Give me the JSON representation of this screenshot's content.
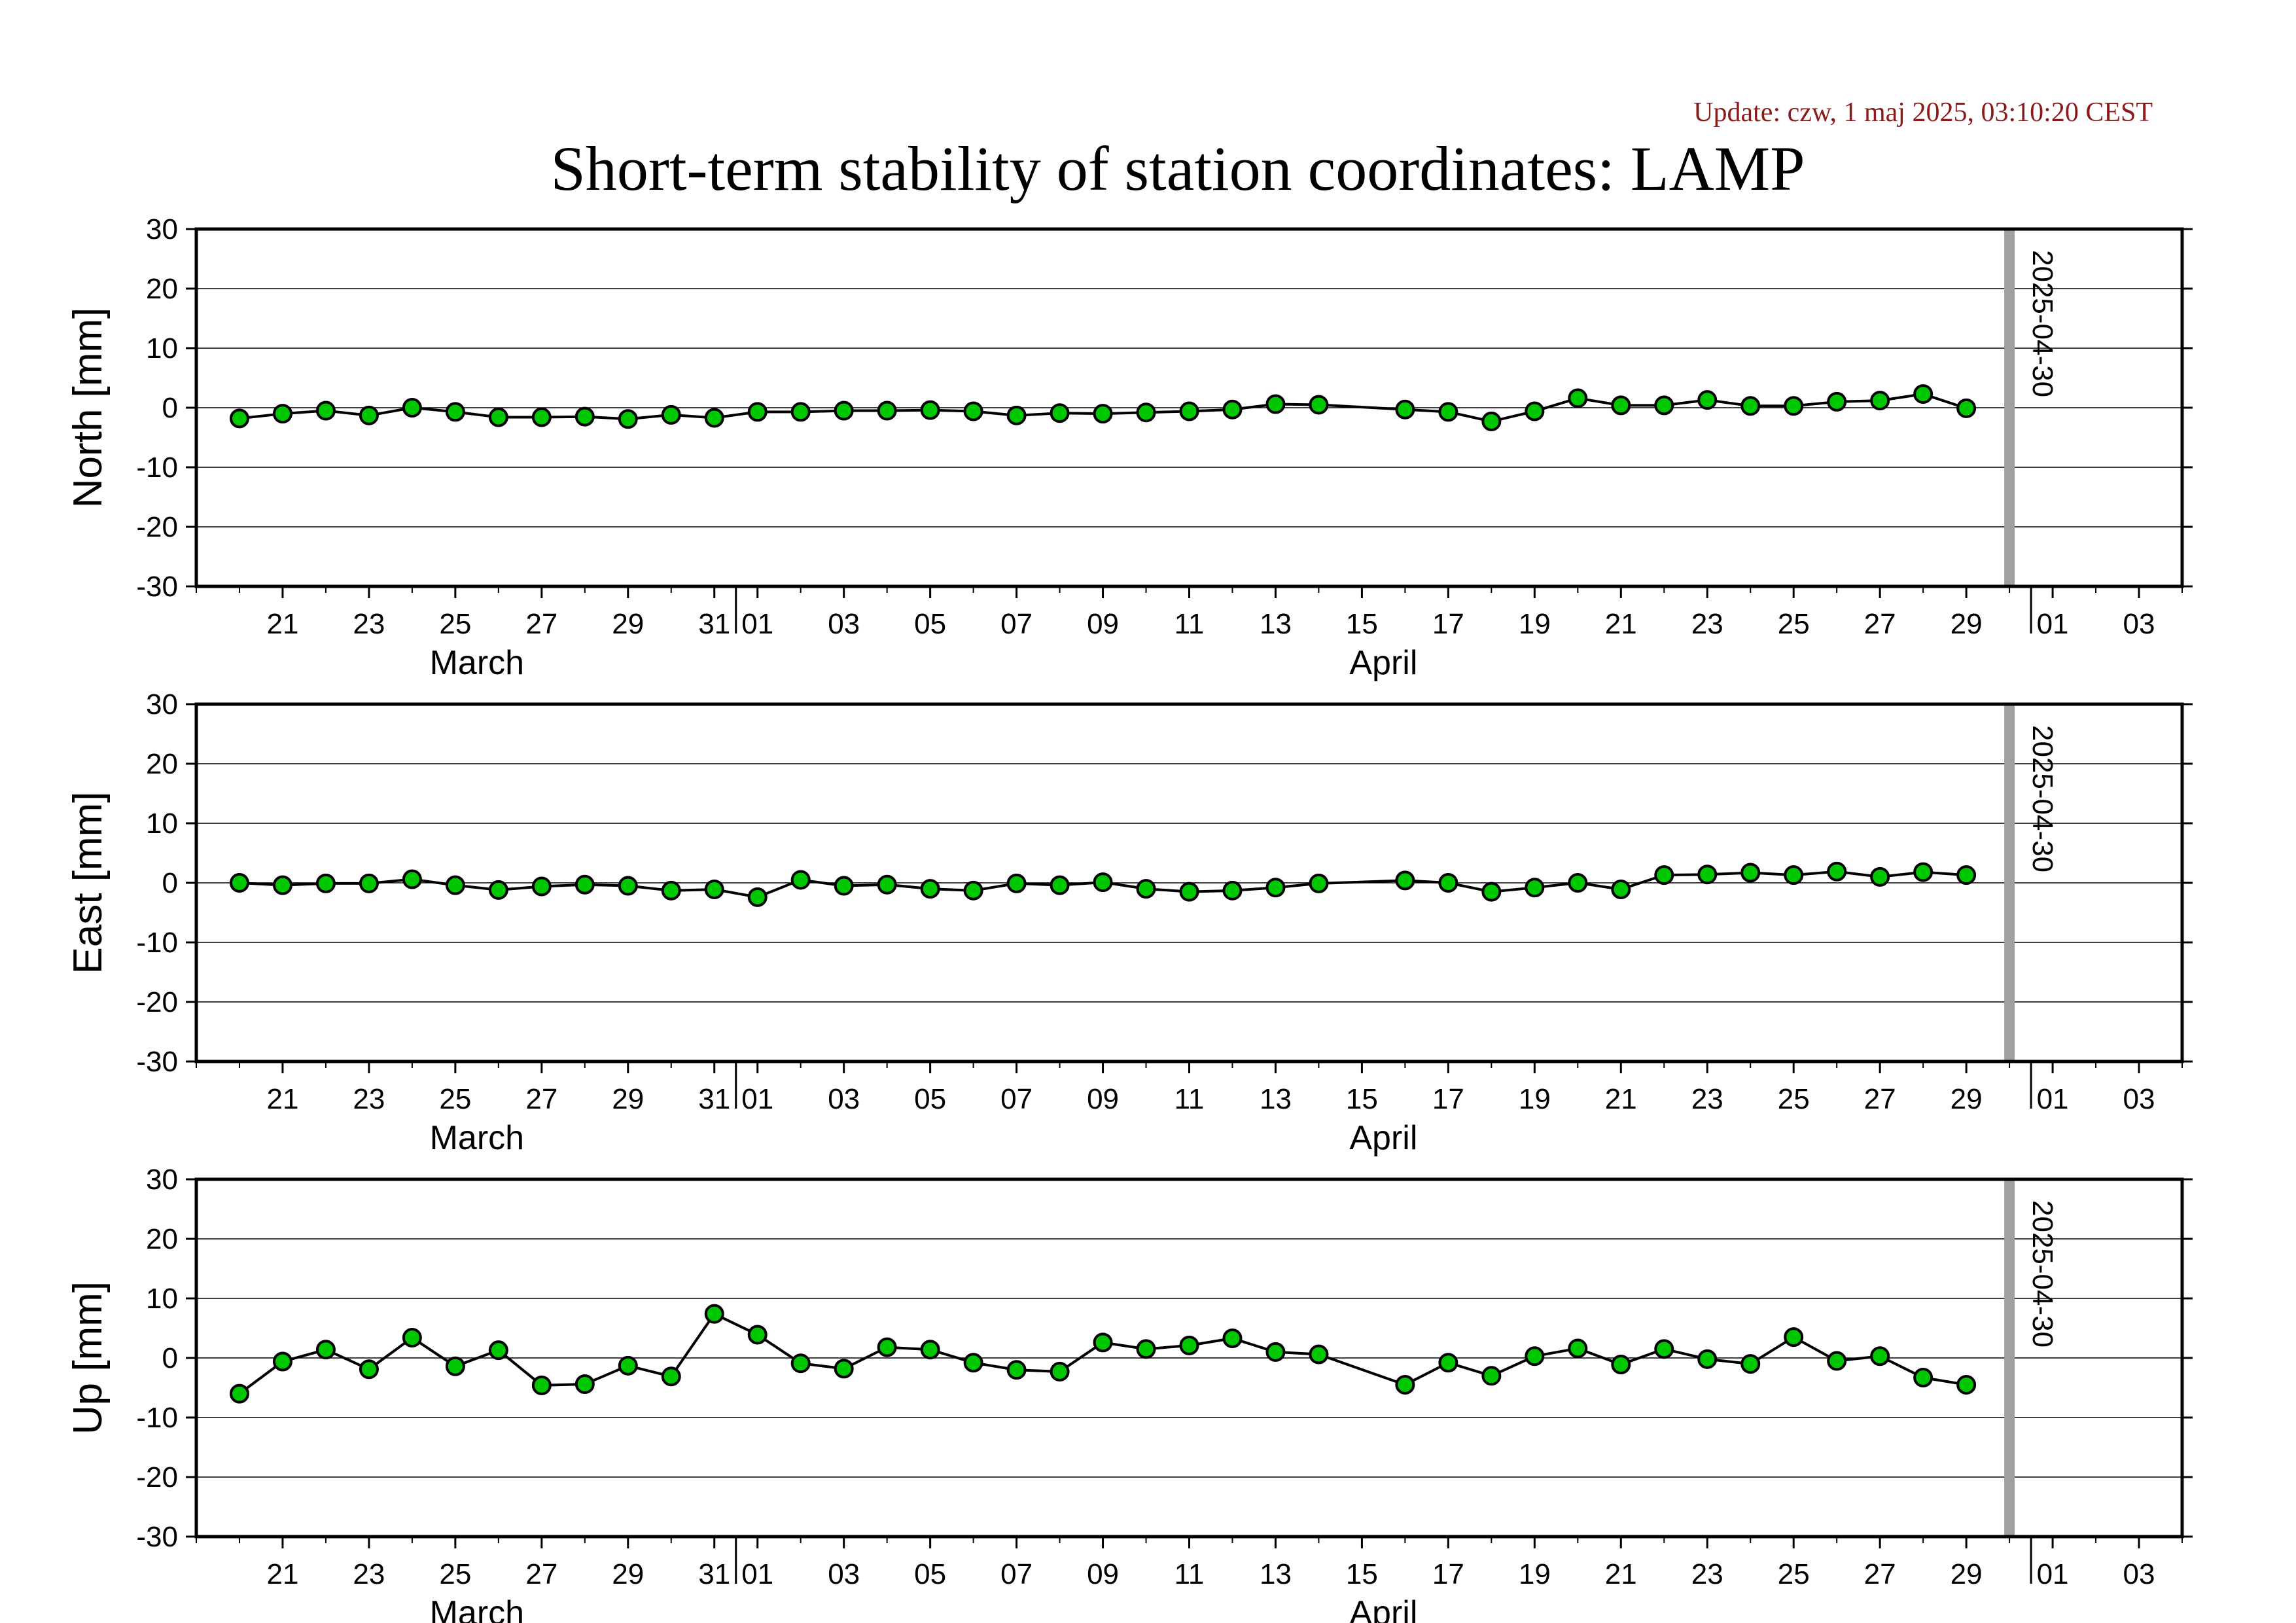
{
  "header": {
    "update": "Update: czw, 1 maj 2025, 03:10:20 CEST",
    "title": "Short-term stability of station coordinates: LAMP"
  },
  "colors": {
    "update_text": "#8b1a1a",
    "marker_fill": "#00c800",
    "marker_stroke": "#000000",
    "line": "#000000",
    "grid": "#000000",
    "today_bar": "#a0a0a0"
  },
  "chart_data": [
    {
      "type": "line",
      "ylabel": "North [mm]",
      "ylim": [
        -30,
        30
      ],
      "yticks": [
        "30",
        "20",
        "10",
        "0",
        "-10",
        "-20",
        "-30"
      ],
      "x_range": [
        "2025-03-19",
        "2025-05-04"
      ],
      "x_ticks": [
        "21",
        "23",
        "25",
        "27",
        "29",
        "31",
        "01",
        "03",
        "05",
        "07",
        "09",
        "11",
        "13",
        "15",
        "17",
        "19",
        "21",
        "23",
        "25",
        "27",
        "29",
        "01",
        "03"
      ],
      "months": [
        "March",
        "April"
      ],
      "marker": {
        "date": "2025-04-30",
        "label": "2025-04-30"
      },
      "grid": true,
      "series": [
        {
          "x": [
            "2025-03-20",
            "2025-03-21",
            "2025-03-22",
            "2025-03-23",
            "2025-03-24",
            "2025-03-25",
            "2025-03-26",
            "2025-03-27",
            "2025-03-28",
            "2025-03-29",
            "2025-03-30",
            "2025-03-31",
            "2025-04-01",
            "2025-04-02",
            "2025-04-03",
            "2025-04-04",
            "2025-04-05",
            "2025-04-06",
            "2025-04-07",
            "2025-04-08",
            "2025-04-09",
            "2025-04-10",
            "2025-04-11",
            "2025-04-12",
            "2025-04-13",
            "2025-04-14",
            "2025-04-16",
            "2025-04-17",
            "2025-04-18",
            "2025-04-19",
            "2025-04-20",
            "2025-04-21",
            "2025-04-22",
            "2025-04-23",
            "2025-04-24",
            "2025-04-25",
            "2025-04-26",
            "2025-04-27",
            "2025-04-28",
            "2025-04-29"
          ],
          "values": [
            -1.8,
            -1.0,
            -0.5,
            -1.3,
            0.0,
            -0.7,
            -1.6,
            -1.6,
            -1.5,
            -1.9,
            -1.2,
            -1.7,
            -0.7,
            -0.7,
            -0.5,
            -0.5,
            -0.4,
            -0.6,
            -1.3,
            -0.9,
            -1.0,
            -0.8,
            -0.6,
            -0.3,
            0.6,
            0.5,
            -0.3,
            -0.7,
            -2.3,
            -0.6,
            1.6,
            0.4,
            0.4,
            1.3,
            0.3,
            0.3,
            1.0,
            1.2,
            2.3,
            -0.1
          ]
        }
      ]
    },
    {
      "type": "line",
      "ylabel": "East [mm]",
      "ylim": [
        -30,
        30
      ],
      "yticks": [
        "30",
        "20",
        "10",
        "0",
        "-10",
        "-20",
        "-30"
      ],
      "x_range": [
        "2025-03-19",
        "2025-05-04"
      ],
      "x_ticks": [
        "21",
        "23",
        "25",
        "27",
        "29",
        "31",
        "01",
        "03",
        "05",
        "07",
        "09",
        "11",
        "13",
        "15",
        "17",
        "19",
        "21",
        "23",
        "25",
        "27",
        "29",
        "01",
        "03"
      ],
      "months": [
        "March",
        "April"
      ],
      "marker": {
        "date": "2025-04-30",
        "label": "2025-04-30"
      },
      "grid": true,
      "series": [
        {
          "x": [
            "2025-03-20",
            "2025-03-21",
            "2025-03-22",
            "2025-03-23",
            "2025-03-24",
            "2025-03-25",
            "2025-03-26",
            "2025-03-27",
            "2025-03-28",
            "2025-03-29",
            "2025-03-30",
            "2025-03-31",
            "2025-04-01",
            "2025-04-02",
            "2025-04-03",
            "2025-04-04",
            "2025-04-05",
            "2025-04-06",
            "2025-04-07",
            "2025-04-08",
            "2025-04-09",
            "2025-04-10",
            "2025-04-11",
            "2025-04-12",
            "2025-04-13",
            "2025-04-14",
            "2025-04-16",
            "2025-04-17",
            "2025-04-18",
            "2025-04-19",
            "2025-04-20",
            "2025-04-21",
            "2025-04-22",
            "2025-04-23",
            "2025-04-24",
            "2025-04-25",
            "2025-04-26",
            "2025-04-27",
            "2025-04-28",
            "2025-04-29"
          ],
          "values": [
            0.0,
            -0.4,
            -0.1,
            -0.1,
            0.6,
            -0.4,
            -1.2,
            -0.6,
            -0.3,
            -0.5,
            -1.3,
            -1.1,
            -2.4,
            0.5,
            -0.5,
            -0.3,
            -1.0,
            -1.3,
            -0.1,
            -0.4,
            0.1,
            -1.0,
            -1.5,
            -1.3,
            -0.8,
            -0.1,
            0.4,
            0.0,
            -1.5,
            -0.8,
            0.0,
            -1.1,
            1.3,
            1.4,
            1.7,
            1.3,
            1.9,
            1.0,
            1.8,
            1.3
          ]
        }
      ]
    },
    {
      "type": "line",
      "ylabel": "Up [mm]",
      "ylim": [
        -30,
        30
      ],
      "yticks": [
        "30",
        "20",
        "10",
        "0",
        "-10",
        "-20",
        "-30"
      ],
      "x_range": [
        "2025-03-19",
        "2025-05-04"
      ],
      "x_ticks": [
        "21",
        "23",
        "25",
        "27",
        "29",
        "31",
        "01",
        "03",
        "05",
        "07",
        "09",
        "11",
        "13",
        "15",
        "17",
        "19",
        "21",
        "23",
        "25",
        "27",
        "29",
        "01",
        "03"
      ],
      "months": [
        "March",
        "April"
      ],
      "marker": {
        "date": "2025-04-30",
        "label": "2025-04-30"
      },
      "grid": true,
      "series": [
        {
          "x": [
            "2025-03-20",
            "2025-03-21",
            "2025-03-22",
            "2025-03-23",
            "2025-03-24",
            "2025-03-25",
            "2025-03-26",
            "2025-03-27",
            "2025-03-28",
            "2025-03-29",
            "2025-03-30",
            "2025-03-31",
            "2025-04-01",
            "2025-04-02",
            "2025-04-03",
            "2025-04-04",
            "2025-04-05",
            "2025-04-06",
            "2025-04-07",
            "2025-04-08",
            "2025-04-09",
            "2025-04-10",
            "2025-04-11",
            "2025-04-12",
            "2025-04-13",
            "2025-04-14",
            "2025-04-16",
            "2025-04-17",
            "2025-04-18",
            "2025-04-19",
            "2025-04-20",
            "2025-04-21",
            "2025-04-22",
            "2025-04-23",
            "2025-04-24",
            "2025-04-25",
            "2025-04-26",
            "2025-04-27",
            "2025-04-28",
            "2025-04-29"
          ],
          "values": [
            -6.0,
            -0.6,
            1.4,
            -1.9,
            3.4,
            -1.4,
            1.3,
            -4.6,
            -4.4,
            -1.3,
            -3.1,
            7.4,
            3.9,
            -0.9,
            -1.8,
            1.8,
            1.4,
            -0.8,
            -2.0,
            -2.3,
            2.6,
            1.5,
            2.1,
            3.3,
            1.0,
            0.6,
            -4.5,
            -0.8,
            -3.0,
            0.3,
            1.6,
            -1.1,
            1.5,
            -0.2,
            -1.0,
            3.5,
            -0.5,
            0.3,
            -3.3,
            -4.5
          ]
        }
      ]
    }
  ]
}
